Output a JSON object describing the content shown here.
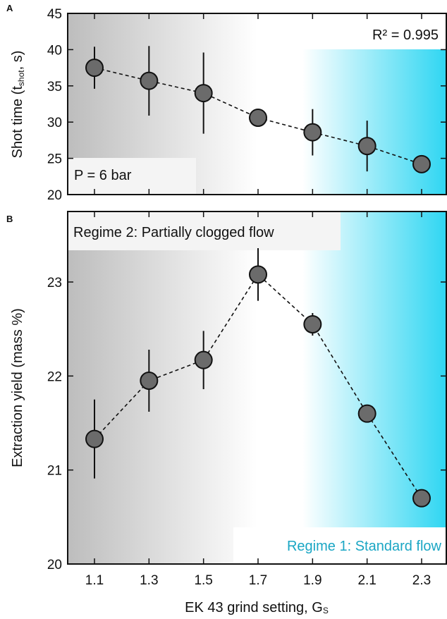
{
  "chart_data": [
    {
      "panel": "A",
      "type": "scatter",
      "connected": "dashed-line",
      "x": [
        1.1,
        1.3,
        1.5,
        1.7,
        1.9,
        2.1,
        2.3
      ],
      "y": [
        37.5,
        35.7,
        34.0,
        30.6,
        28.6,
        26.7,
        24.2
      ],
      "yerr": [
        2.9,
        4.8,
        5.6,
        0.0,
        3.2,
        3.5,
        0.0
      ],
      "ylabel_main": "Shot time (t",
      "ylabel_sub": "shot",
      "ylabel_end": ", s)",
      "ylim": [
        20,
        45
      ],
      "yticks": [
        "20",
        "25",
        "30",
        "35",
        "40",
        "45"
      ],
      "annotations": {
        "r2": "R² = 0.995",
        "pressure": "P = 6 bar"
      },
      "background": "gradient grey (left) to cyan (right)",
      "grid": false
    },
    {
      "panel": "B",
      "type": "scatter",
      "connected": "dashed-line",
      "x": [
        1.1,
        1.3,
        1.5,
        1.7,
        1.9,
        2.1,
        2.3
      ],
      "y": [
        21.33,
        21.95,
        22.17,
        23.08,
        22.55,
        21.6,
        20.7
      ],
      "yerr": [
        0.42,
        0.33,
        0.31,
        0.28,
        0.12,
        0.0,
        0.0
      ],
      "ylabel": "Extraction yield (mass %)",
      "xlabel_main": "EK 43 grind setting, G",
      "xlabel_sub": "S",
      "ylim": [
        20,
        23.75
      ],
      "yticks": [
        "20",
        "21",
        "22",
        "23"
      ],
      "xticks": [
        "1.1",
        "1.3",
        "1.5",
        "1.7",
        "1.9",
        "2.1",
        "2.3"
      ],
      "annotations": {
        "regime2": "Regime 2: Partially clogged flow",
        "regime1": "Regime 1: Standard flow"
      },
      "background": "gradient grey (left) to cyan (right)",
      "grid": false
    }
  ],
  "colors": {
    "marker_fill": "#6b6b6b",
    "marker_stroke": "#111111",
    "grey": "#bdbdbd",
    "cyan": "#2fd6f2",
    "annotation_cyan": "#1aa6c4"
  }
}
